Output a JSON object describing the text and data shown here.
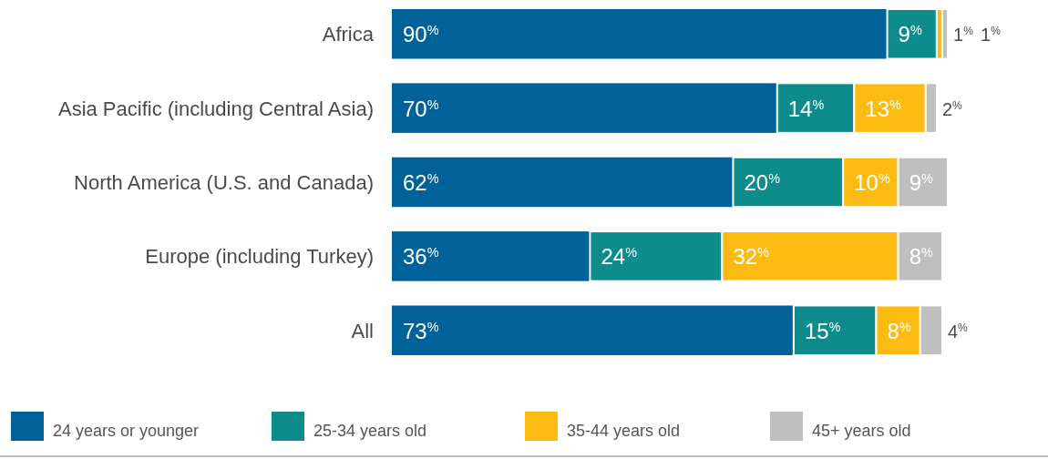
{
  "chart_data": {
    "type": "bar",
    "orientation": "horizontal",
    "stacked": true,
    "legend": "bottom",
    "categories": [
      "Africa",
      "Asia Pacific (including Central Asia)",
      "North America (U.S. and Canada)",
      "Europe (including Turkey)",
      "All"
    ],
    "series": [
      {
        "name": "24 years or younger",
        "color": "#006298",
        "values": [
          90,
          70,
          62,
          36,
          73
        ],
        "value_labels": [
          "90$^{%}$",
          "70$^{%}$",
          "62$^{%}$",
          "36$^{%}$",
          "73$^{%}$"
        ]
      },
      {
        "name": "25-34 years old",
        "color": "#0e8c8c",
        "values": [
          9,
          14,
          20,
          24,
          15
        ],
        "value_labels": [
          "9$^{%}$",
          "14$^{%}$",
          "20$^{%}$",
          "24$^{%}$",
          "15$^{%}$"
        ]
      },
      {
        "name": "35-44 years old",
        "color": "#fbbb13",
        "values": [
          1,
          13,
          10,
          32,
          8
        ],
        "value_labels": [
          "1$^{%}$",
          "13$^{%}$",
          "10$^{%}$",
          "32$^{%}$",
          "8$^{%}$"
        ]
      },
      {
        "name": "45+ years old",
        "color": "#bfbfbf",
        "values": [
          1,
          2,
          9,
          8,
          4
        ],
        "value_labels": [
          "1$^{%}$",
          "2$^{%}$",
          "9$^{%}$",
          "8$^{%}$",
          "4$^{%}$"
        ]
      }
    ]
  }
}
